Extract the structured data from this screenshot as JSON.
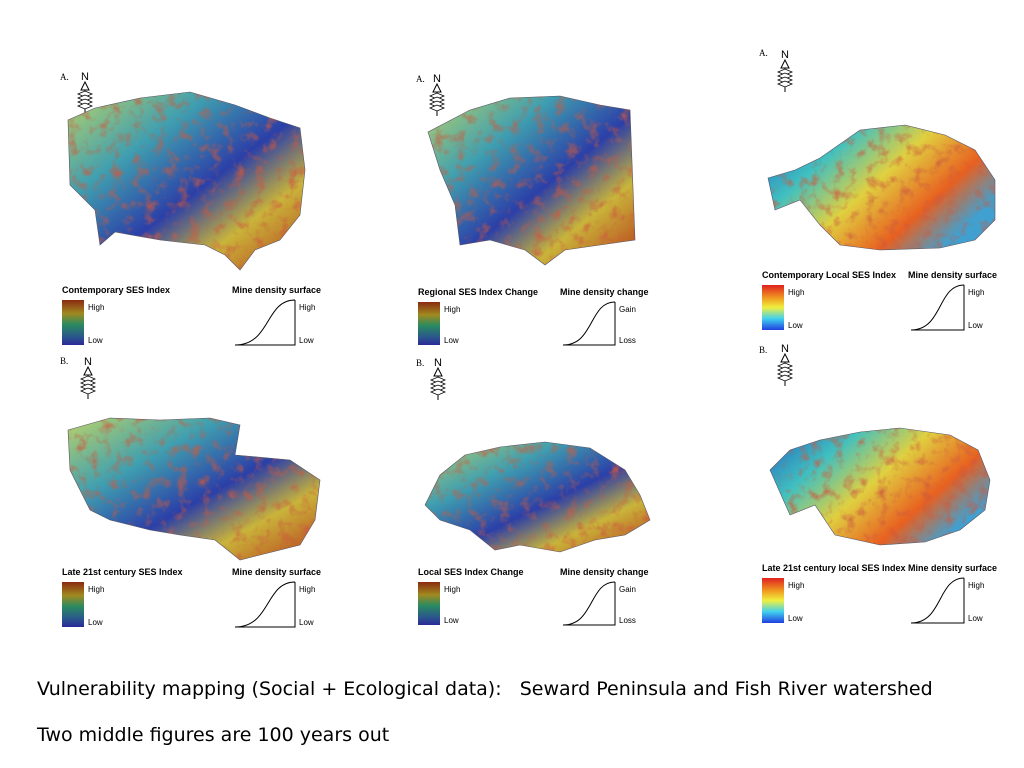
{
  "panels": [
    {
      "label": "A.",
      "north": "N",
      "legend_title": "Contemporary SES Index",
      "legend_high": "High",
      "legend_low": "Low",
      "curve_title": "Mine density surface",
      "curve_high": "High",
      "curve_low": "Low"
    },
    {
      "label": "A.",
      "north": "N",
      "legend_title": "Regional SES Index Change",
      "legend_high": "High",
      "legend_low": "Low",
      "curve_title": "Mine density change",
      "curve_high": "Gain",
      "curve_low": "Loss"
    },
    {
      "label": "A.",
      "north": "N",
      "legend_title": "Contemporary Local SES Index",
      "legend_high": "High",
      "legend_low": "Low",
      "curve_title": "Mine density surface",
      "curve_high": "High",
      "curve_low": "Low"
    },
    {
      "label": "B.",
      "north": "N",
      "legend_title": "Late 21st century SES Index",
      "legend_high": "High",
      "legend_low": "Low",
      "curve_title": "Mine density surface",
      "curve_high": "High",
      "curve_low": "Low"
    },
    {
      "label": "B.",
      "north": "N",
      "legend_title": "Local SES Index Change",
      "legend_high": "High",
      "legend_low": "Low",
      "curve_title": "Mine density change",
      "curve_high": "Gain",
      "curve_low": "Loss"
    },
    {
      "label": "B.",
      "north": "N",
      "legend_title": "Late 21st century local SES Index",
      "legend_high": "High",
      "legend_low": "Low",
      "curve_title": "Mine density surface",
      "curve_high": "High",
      "curve_low": "Low"
    }
  ],
  "caption": {
    "line1": "Vulnerability mapping (Social + Ecological data):   Seward Peninsula and Fish River watershed",
    "line2": "Two middle figures are 100 years out"
  }
}
